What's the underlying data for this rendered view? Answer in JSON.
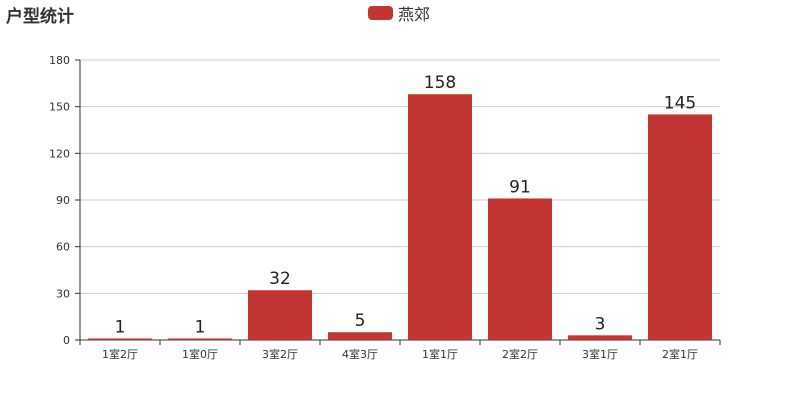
{
  "chart_data": {
    "type": "bar",
    "title": "户型统计",
    "categories": [
      "1室2厅",
      "1室0厅",
      "3室2厅",
      "4室3厅",
      "1室1厅",
      "2室2厅",
      "3室1厅",
      "2室1厅"
    ],
    "series": [
      {
        "name": "燕郊",
        "values": [
          1,
          1,
          32,
          5,
          158,
          91,
          3,
          145
        ],
        "color": "#c23531"
      }
    ],
    "ylim": [
      0,
      180
    ],
    "yticks": [
      0,
      30,
      60,
      90,
      120,
      150,
      180
    ],
    "grid": true,
    "legend_position": "top-center",
    "data_labels": true
  }
}
